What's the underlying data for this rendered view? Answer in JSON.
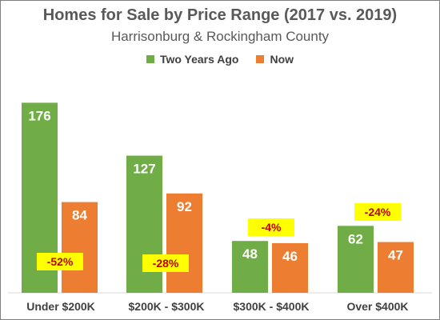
{
  "chart_data": {
    "type": "bar",
    "title": "Homes for Sale by Price Range (2017 vs. 2019)",
    "subtitle": "Harrisonburg & Rockingham County",
    "categories": [
      "Under $200K",
      "$200K - $300K",
      "$300K - $400K",
      "Over $400K"
    ],
    "series": [
      {
        "name": "Two Years Ago",
        "values": [
          176,
          127,
          48,
          62
        ],
        "color": "#70ad47"
      },
      {
        "name": "Now",
        "values": [
          84,
          92,
          46,
          47
        ],
        "color": "#ed7d31"
      }
    ],
    "annotations": [
      "-52%",
      "-28%",
      "-4%",
      "-24%"
    ],
    "annotation_style": {
      "background": "#ffff00",
      "text_color": "#c00000"
    },
    "ylim": [
      0,
      180
    ],
    "grid": false,
    "legend": "top-center",
    "data_labels": true
  }
}
